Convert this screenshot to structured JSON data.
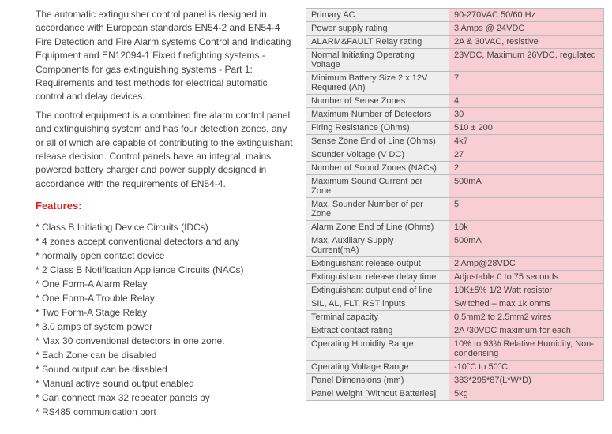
{
  "description": {
    "para1": "The automatic extinguisher control panel is designed in accordance with European standards EN54-2 and  EN54-4 Fire Detection and Fire Alarm systems  Control and Indicating Equipment and EN12094-1  Fixed firefighting systems - Components for gas extinguishing systems - Part 1: Requirements and test methods for electrical automatic control and delay devices.",
    "para2": "The control equipment is a combined fire alarm control panel and extinguishing system and has four detection zones, any or all of which are capable of contributing to the extinguishant release decision. Control panels have an integral, mains powered battery charger and power supply designed in accordance with the requirements of EN54-4."
  },
  "features_heading": "Features:",
  "features": [
    "Class B Initiating Device Circuits (IDCs)",
    "4 zones accept conventional detectors and any",
    "2 Class B Notification Appliance Circuits (NACs)",
    "One Form-A Alarm Relay",
    "One Form-A Trouble Relay",
    "Two Form-A Stage Relay",
    "3.0 amps of system power",
    "Max 30 conventional detectors in one zone.",
    "Each Zone can be disabled",
    "Sound output can be disabled",
    "Manual active sound output enabled",
    "Can connect max 32 repeater panels by"
  ],
  "features_sub_after_1": "normally open contact device",
  "features_sub_after_11": "RS485 communication port",
  "spec_rows": [
    {
      "label": "Primary AC",
      "value": "90-270VAC 50/60 Hz"
    },
    {
      "label": "Power supply rating",
      "value": "3 Amps @ 24VDC"
    },
    {
      "label": "ALARM&FAULT Relay rating",
      "value": "2A & 30VAC, resistive"
    },
    {
      "label": "Normal Initiating Operating Voltage",
      "value": "23VDC, Maximum 26VDC, regulated"
    },
    {
      "label": "Minimum Battery Size 2 x 12V Required (Ah)",
      "value": "7"
    },
    {
      "label": "Number of Sense Zones",
      "value": "4"
    },
    {
      "label": "Maximum Number of Detectors",
      "value": "30"
    },
    {
      "label": "Firing Resistance (Ohms)",
      "value": "510 ± 200"
    },
    {
      "label": "Sense Zone End of Line (Ohms)",
      "value": "4k7"
    },
    {
      "label": "Sounder Voltage (V DC)",
      "value": "27"
    },
    {
      "label": "Number of Sound Zones (NACs)",
      "value": "2"
    },
    {
      "label": "Maximum Sound Current per Zone",
      "value": "500mA"
    },
    {
      "label": "Max. Sounder Number of per Zone",
      "value": "5"
    },
    {
      "label": "Alarm Zone End of Line (Ohms)",
      "value": "10k"
    },
    {
      "label": "Max. Auxiliary Supply Current(mA)",
      "value": "500mA"
    },
    {
      "label": "Extinguishant release output",
      "value": "2 Amp@28VDC"
    },
    {
      "label": "Extinguishant release delay time",
      "value": "Adjustable 0 to 75 seconds"
    },
    {
      "label": "Extinguishant output end of line",
      "value": "10K±5% 1/2 Watt resistor"
    },
    {
      "label": "SIL, AL, FLT, RST inputs",
      "value": "Switched –  max 1k ohms"
    },
    {
      "label": "Terminal capacity",
      "value": "0.5mm2 to 2.5mm2 wires"
    },
    {
      "label": "Extract contact rating",
      "value": "2A /30VDC maximum for each"
    },
    {
      "label": "Operating Humidity Range",
      "value": "10% to 93% Relative Humidity, Non-condensing"
    },
    {
      "label": "Operating Voltage Range",
      "value": "-10°C to 50°C"
    },
    {
      "label": "Panel Dimensions (mm)",
      "value": "383*295*87(L*W*D)"
    },
    {
      "label": "Panel Weight [Without Batteries]",
      "value": "5kg"
    }
  ],
  "colors": {
    "label_bg": "#eeeeee",
    "value_bg": "#f7cfd3",
    "border": "#bbbbbb",
    "features_heading": "#d22222",
    "text": "#444444"
  }
}
